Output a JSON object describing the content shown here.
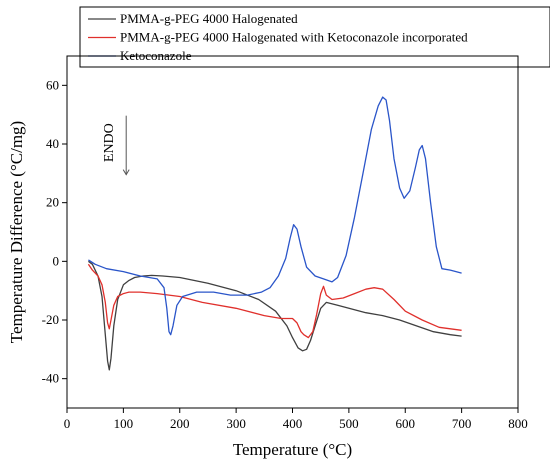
{
  "chart_data": {
    "type": "line",
    "xlabel": "Temperature (°C)",
    "ylabel": "Temperature Difference (°C/mg)",
    "xlim": [
      0,
      800
    ],
    "ylim": [
      -50,
      70
    ],
    "xticks": [
      0,
      100,
      200,
      300,
      400,
      500,
      600,
      700,
      800
    ],
    "yticks": [
      -40,
      -20,
      0,
      20,
      40,
      60
    ],
    "grid": false,
    "legend_position": "top",
    "annotation": {
      "text": "ENDO",
      "arrow": "down",
      "x": 105,
      "y": 50
    },
    "series": [
      {
        "name": "PMMA-g-PEG 4000 Halogenated",
        "color": "#404040",
        "x": [
          38,
          45,
          55,
          62,
          68,
          72,
          75,
          78,
          83,
          90,
          100,
          110,
          120,
          135,
          150,
          170,
          200,
          250,
          300,
          340,
          370,
          390,
          400,
          410,
          418,
          425,
          432,
          440,
          450,
          460,
          480,
          500,
          530,
          560,
          590,
          620,
          650,
          680,
          700
        ],
        "y": [
          0,
          -1,
          -5,
          -12,
          -25,
          -34,
          -37,
          -33,
          -22,
          -13,
          -8,
          -6.5,
          -5.5,
          -5,
          -4.8,
          -5,
          -5.5,
          -7.5,
          -10,
          -13,
          -17,
          -22,
          -26,
          -29.5,
          -30.5,
          -30,
          -27,
          -22,
          -16,
          -14,
          -15,
          -16,
          -17.5,
          -18.5,
          -20,
          -22,
          -24,
          -25,
          -25.5
        ]
      },
      {
        "name": "PMMA-g-PEG 4000 Halogenated with Ketoconazole incorporated",
        "color": "#e0302c",
        "x": [
          38,
          45,
          55,
          62,
          68,
          72,
          75,
          78,
          83,
          90,
          100,
          110,
          130,
          160,
          200,
          240,
          300,
          350,
          380,
          400,
          408,
          415,
          420,
          428,
          436,
          443,
          450,
          455,
          460,
          470,
          490,
          510,
          530,
          545,
          560,
          580,
          600,
          630,
          660,
          700
        ],
        "y": [
          -1,
          -3,
          -5,
          -8,
          -14,
          -21,
          -23,
          -20,
          -15,
          -12,
          -11,
          -10.5,
          -10.5,
          -11,
          -12,
          -14,
          -16,
          -18.5,
          -19.5,
          -19.5,
          -21,
          -24,
          -25,
          -26,
          -24,
          -18,
          -11,
          -8.5,
          -11.5,
          -13,
          -12.5,
          -11,
          -9.5,
          -9,
          -9.5,
          -13,
          -17,
          -20,
          -22.5,
          -23.5
        ]
      },
      {
        "name": "Ketoconazole",
        "color": "#2a55c9",
        "x": [
          38,
          50,
          70,
          100,
          130,
          160,
          172,
          177,
          181,
          184,
          188,
          195,
          205,
          230,
          260,
          290,
          320,
          345,
          360,
          375,
          388,
          396,
          402,
          408,
          415,
          425,
          440,
          455,
          470,
          480,
          495,
          510,
          525,
          540,
          552,
          560,
          566,
          572,
          580,
          590,
          598,
          608,
          618,
          625,
          630,
          636,
          645,
          655,
          665,
          680,
          690,
          700
        ],
        "y": [
          0.5,
          -1,
          -2.5,
          -3.5,
          -5,
          -6,
          -9,
          -16,
          -24,
          -25,
          -22,
          -15,
          -12,
          -10.5,
          -10.5,
          -11.5,
          -11.5,
          -10.5,
          -9,
          -5,
          1,
          8,
          12.5,
          11,
          5,
          -2,
          -5,
          -6,
          -7,
          -5.5,
          2,
          15,
          30,
          45,
          53,
          56,
          55,
          48,
          35,
          25,
          21.5,
          24,
          32,
          38,
          39.5,
          35,
          20,
          5,
          -2.5,
          -3,
          -3.5,
          -4
        ]
      }
    ]
  }
}
